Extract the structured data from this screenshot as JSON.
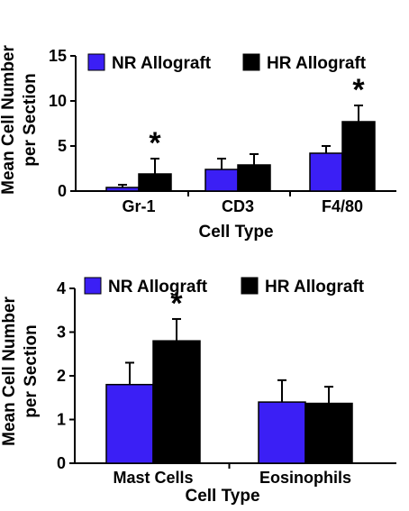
{
  "colors": {
    "nr": "#3b1ff5",
    "hr": "#000000"
  },
  "chart_data": [
    {
      "type": "bar",
      "categories": [
        "Gr-1",
        "CD3",
        "F4/80"
      ],
      "series": [
        {
          "name": "NR Allograft",
          "values": [
            0.4,
            2.4,
            4.2
          ],
          "errors": [
            0.3,
            1.2,
            0.8
          ]
        },
        {
          "name": "HR Allograft",
          "values": [
            1.9,
            2.9,
            7.7
          ],
          "errors": [
            1.7,
            1.2,
            1.8
          ]
        }
      ],
      "xlabel": "Cell Type",
      "ylabel_lines": [
        "Mean Cell Number",
        "per Section"
      ],
      "ylim": [
        0,
        15
      ],
      "yticks": [
        "0",
        "5",
        "10",
        "15"
      ],
      "significance": [
        "*",
        "",
        "*"
      ],
      "legend": "top"
    },
    {
      "type": "bar",
      "categories": [
        "Mast Cells",
        "Eosinophils"
      ],
      "series": [
        {
          "name": "NR Allograft",
          "values": [
            1.8,
            1.4
          ],
          "errors": [
            0.5,
            0.5
          ]
        },
        {
          "name": "HR Allograft",
          "values": [
            2.8,
            1.37
          ],
          "errors": [
            0.5,
            0.38
          ]
        }
      ],
      "xlabel": "Cell Type",
      "ylabel_lines": [
        "Mean Cell Number",
        "per Section"
      ],
      "ylim": [
        0,
        4
      ],
      "yticks": [
        "0",
        "1",
        "2",
        "3",
        "4"
      ],
      "significance": [
        "*",
        ""
      ],
      "legend": "top"
    }
  ]
}
